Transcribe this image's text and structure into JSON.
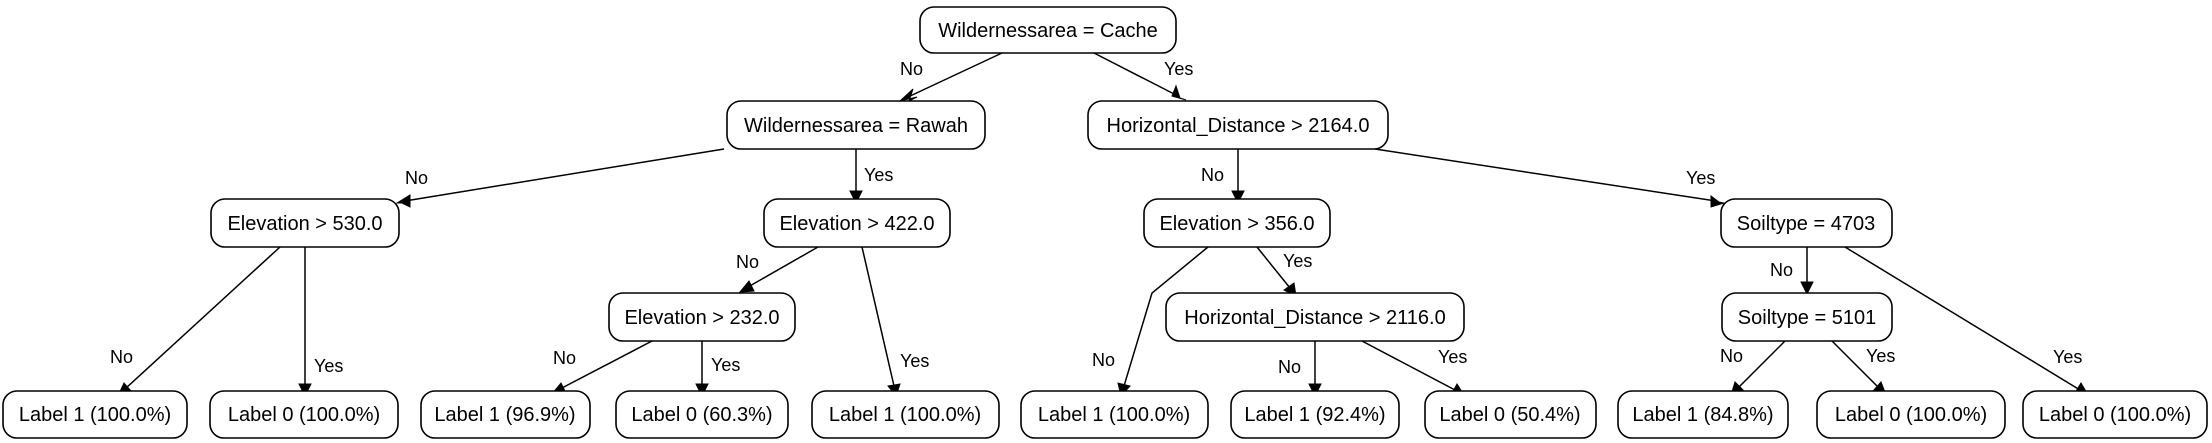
{
  "tree": {
    "root": {
      "label": "Wildernessarea = Cache"
    },
    "n_rawah": {
      "label": "Wildernessarea = Rawah"
    },
    "n_hd2164": {
      "label": "Horizontal_Distance > 2164.0"
    },
    "n_elev530": {
      "label": "Elevation > 530.0"
    },
    "n_elev422": {
      "label": "Elevation > 422.0"
    },
    "n_elev232": {
      "label": "Elevation > 232.0"
    },
    "n_elev356": {
      "label": "Elevation > 356.0"
    },
    "n_hd2116": {
      "label": "Horizontal_Distance > 2116.0"
    },
    "n_soil4703": {
      "label": "Soiltype = 4703"
    },
    "n_soil5101": {
      "label": "Soiltype = 5101"
    },
    "leaves": [
      {
        "label": "Label 1 (100.0%)"
      },
      {
        "label": "Label 0 (100.0%)"
      },
      {
        "label": "Label 1 (96.9%)"
      },
      {
        "label": "Label 0 (60.3%)"
      },
      {
        "label": "Label 1 (100.0%)"
      },
      {
        "label": "Label 1 (100.0%)"
      },
      {
        "label": "Label 1 (92.4%)"
      },
      {
        "label": "Label 0 (50.4%)"
      },
      {
        "label": "Label 1 (84.8%)"
      },
      {
        "label": "Label 0 (100.0%)"
      },
      {
        "label": "Label 0 (100.0%)"
      }
    ]
  },
  "edge_labels": {
    "no": "No",
    "yes": "Yes"
  }
}
